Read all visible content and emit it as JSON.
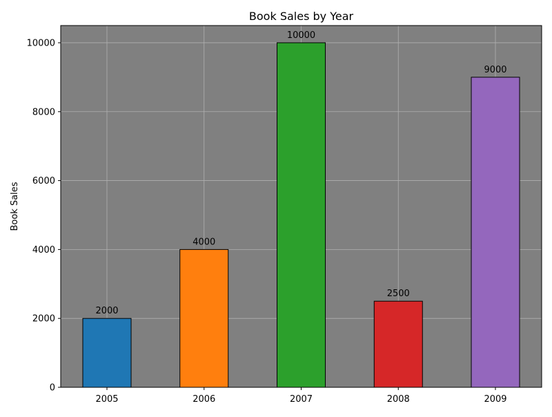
{
  "chart_data": {
    "type": "bar",
    "title": "Book Sales by Year",
    "xlabel": "",
    "ylabel": "Book Sales",
    "categories": [
      "2005",
      "2006",
      "2007",
      "2008",
      "2009"
    ],
    "values": [
      2000,
      4000,
      10000,
      2500,
      9000
    ],
    "data_labels": [
      "2000",
      "4000",
      "10000",
      "2500",
      "9000"
    ],
    "bar_colors": [
      "#1f77b4",
      "#ff7f0e",
      "#2ca02c",
      "#d62728",
      "#9467bd"
    ],
    "bar_edge_color": "#000000",
    "plot_background": "#808080",
    "grid": true,
    "grid_color": "#b0b0b0",
    "ylim": [
      0,
      10500
    ],
    "yticks": [
      0,
      2000,
      4000,
      6000,
      8000,
      10000
    ],
    "ytick_labels": [
      "0",
      "2000",
      "4000",
      "6000",
      "8000",
      "10000"
    ]
  }
}
